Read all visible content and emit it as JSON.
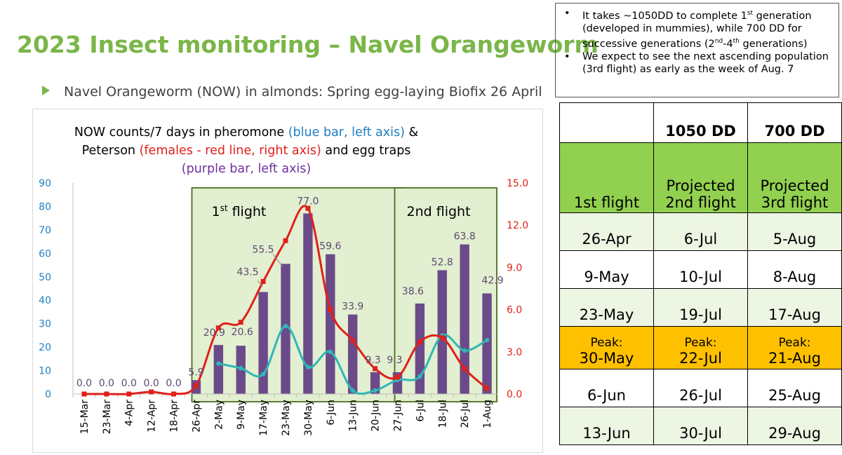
{
  "page": {
    "title": "2023 Insect monitoring – Navel Orangeworm",
    "subtitle": "Navel Orangeworm (NOW) in almonds: Spring egg-laying Biofix 26 April"
  },
  "notes": [
    {
      "pre": "It takes ~1050DD to complete 1",
      "sup1": "st",
      "mid": " generation (developed in mummies), while 700 DD for successive generations (2",
      "sup2": "nd",
      "mid2": "-4",
      "sup3": "th",
      "post": " generations)"
    },
    {
      "pre": "We expect to see the next ascending population (3rd flight) as early as the week of Aug. 7"
    }
  ],
  "table": {
    "headers": [
      "",
      "1050 DD",
      "700 DD"
    ],
    "flight_row": [
      "1st flight",
      "Projected 2nd flight",
      "Projected 3rd flight"
    ],
    "rows": [
      [
        "26-Apr",
        "6-Jul",
        "5-Aug"
      ],
      [
        "9-May",
        "10-Jul",
        "8-Aug"
      ],
      [
        "23-May",
        "19-Jul",
        "17-Aug"
      ]
    ],
    "peak_label": "Peak:",
    "peak_row": [
      "30-May",
      "22-Jul",
      "21-Aug"
    ],
    "rows_after": [
      [
        "6-Jun",
        "26-Jul",
        "25-Aug"
      ],
      [
        "13-Jun",
        "30-Jul",
        "29-Aug"
      ]
    ]
  },
  "chart_data": {
    "type": "bar",
    "title_parts": [
      {
        "text": "NOW counts/7 days in pheromone ",
        "color": "#000000"
      },
      {
        "text": "(blue bar, left axis)",
        "color": "#1f7fc4"
      },
      {
        "text": " &",
        "color": "#000000"
      },
      {
        "text": "NEWLINE"
      },
      {
        "text": "Peterson ",
        "color": "#000000"
      },
      {
        "text": "(females - red line, right axis)",
        "color": "#e0201a"
      },
      {
        "text": " and egg traps",
        "color": "#000000"
      },
      {
        "text": "NEWLINE"
      },
      {
        "text": "(purple bar, left axis)",
        "color": "#7030a0"
      }
    ],
    "categories": [
      "15-Mar",
      "23-Mar",
      "4-Apr",
      "12-Apr",
      "18-Apr",
      "26-Apr",
      "2-May",
      "9-May",
      "17-May",
      "23-May",
      "30-May",
      "6-Jun",
      "13-Jun",
      "20-Jun",
      "27-Jun",
      "6-Jul",
      "18-Jul",
      "26-Jul",
      "1-Aug"
    ],
    "bar_series": {
      "values": [
        0,
        0,
        0,
        0,
        0,
        5.9,
        20.9,
        20.6,
        43.5,
        55.5,
        77.0,
        59.6,
        33.9,
        9.3,
        9.3,
        38.6,
        52.8,
        63.8,
        42.9
      ],
      "labels": [
        "0.0",
        "0.0",
        "0.0",
        "0.0",
        "0.0",
        "5.9",
        "20.9",
        "20.6",
        "43.5",
        "55.5",
        "77.0",
        "59.6",
        "33.9",
        "9.3",
        "9.3",
        "38.6",
        "52.8",
        "63.8",
        "42.9"
      ],
      "color": "#6b4a8a",
      "label_color": "#5e4a72"
    },
    "red_series": {
      "values": [
        0,
        0,
        0,
        0.15,
        0,
        0.6,
        4.7,
        5.1,
        8.0,
        10.9,
        13.2,
        6.0,
        3.8,
        1.8,
        1.2,
        3.7,
        4.0,
        1.8,
        0.4
      ],
      "color": "#e0201a"
    },
    "teal_series": {
      "values": [
        null,
        null,
        null,
        null,
        null,
        null,
        13,
        11,
        8.5,
        29,
        11.5,
        18,
        1.5,
        1.5,
        6,
        7.5,
        25,
        18.5,
        23
      ],
      "color": "#2eb8b5"
    },
    "left_axis": {
      "min": 0,
      "max": 90,
      "ticks": [
        "0",
        "10",
        "20",
        "30",
        "40",
        "50",
        "60",
        "70",
        "80",
        "90"
      ],
      "color": "#1f7fc4"
    },
    "right_axis": {
      "min": 0,
      "max": 15,
      "ticks": [
        "0.0",
        "3.0",
        "6.0",
        "9.0",
        "12.0",
        "15.0"
      ],
      "color": "#e0201a"
    },
    "regions": [
      {
        "label": "1st flight",
        "label_main": "1",
        "label_sup": "st",
        "label_rest": " flight",
        "from_index": 5,
        "to_index": 14
      },
      {
        "label": "2nd flight",
        "from_index": 14,
        "to_index": 18
      }
    ]
  }
}
